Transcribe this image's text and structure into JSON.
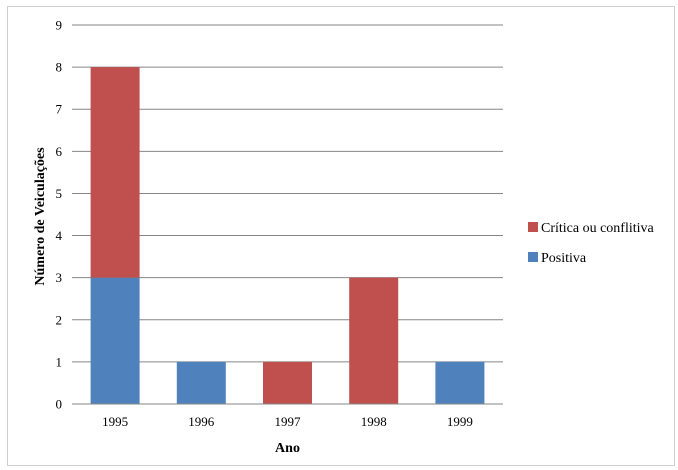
{
  "chart_data": {
    "type": "bar",
    "stacked": true,
    "categories": [
      "1995",
      "1996",
      "1997",
      "1998",
      "1999"
    ],
    "series": [
      {
        "name": "Positiva",
        "values": [
          3,
          1,
          0,
          0,
          1
        ],
        "color": "#4f81bd"
      },
      {
        "name": "Crítica ou conflitiva",
        "values": [
          5,
          0,
          1,
          3,
          0
        ],
        "color": "#c0504d"
      }
    ],
    "title": "",
    "xlabel": "Ano",
    "ylabel": "Número de Veiculações",
    "ylim": [
      0,
      9
    ],
    "yticks": [
      0,
      1,
      2,
      3,
      4,
      5,
      6,
      7,
      8,
      9
    ],
    "grid": true,
    "legend_position": "right"
  }
}
